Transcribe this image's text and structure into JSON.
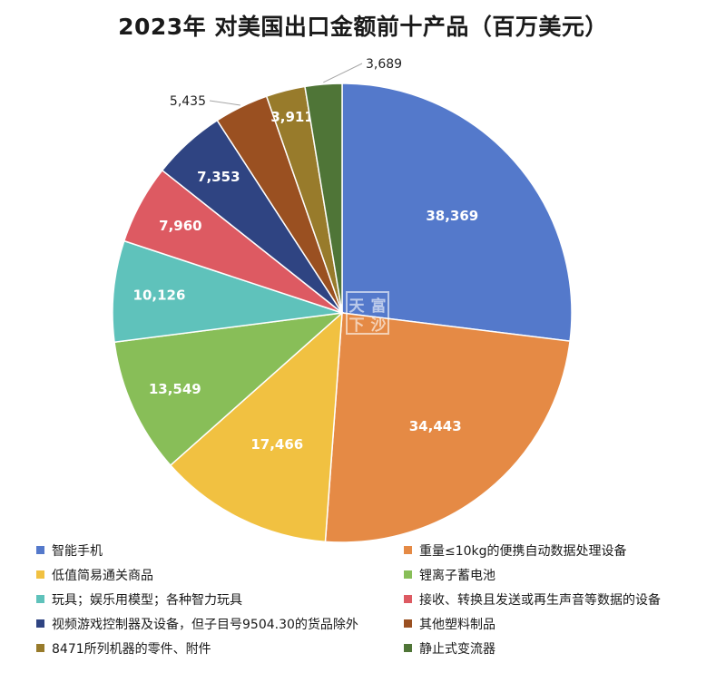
{
  "chart_data": {
    "type": "pie",
    "title": "2023年 对美国出口金额前十产品（百万美元）",
    "slices": [
      {
        "label": "智能手机",
        "value": 38369,
        "value_label": "38,369",
        "color": "#5479CB"
      },
      {
        "label": "重量≤10kg的便携自动数据处理设备",
        "value": 34443,
        "value_label": "34,443",
        "color": "#E58A45"
      },
      {
        "label": "低值简易通关商品",
        "value": 17466,
        "value_label": "17,466",
        "color": "#F1C141"
      },
      {
        "label": "锂离子蓄电池",
        "value": 13549,
        "value_label": "13,549",
        "color": "#88BE58"
      },
      {
        "label": "玩具；娱乐用模型；各种智力玩具",
        "value": 10126,
        "value_label": "10,126",
        "color": "#5FC2BB"
      },
      {
        "label": "接收、转换且发送或再生声音等数据的设备",
        "value": 7960,
        "value_label": "7,960",
        "color": "#DD5A62"
      },
      {
        "label": "视频游戏控制器及设备，但子目号9504.30的货品除外",
        "value": 7353,
        "value_label": "7,353",
        "color": "#2F4482"
      },
      {
        "label": "其他塑料制品",
        "value": 5435,
        "value_label": "5,435",
        "color": "#9A5021"
      },
      {
        "label": "8471所列机器的零件、附件",
        "value": 3911,
        "value_label": "3,911",
        "color": "#987B2B"
      },
      {
        "label": "静止式变流器",
        "value": 3689,
        "value_label": "3,689",
        "color": "#4F7537"
      }
    ],
    "legend_position": "bottom",
    "watermark": "天富下沙"
  }
}
